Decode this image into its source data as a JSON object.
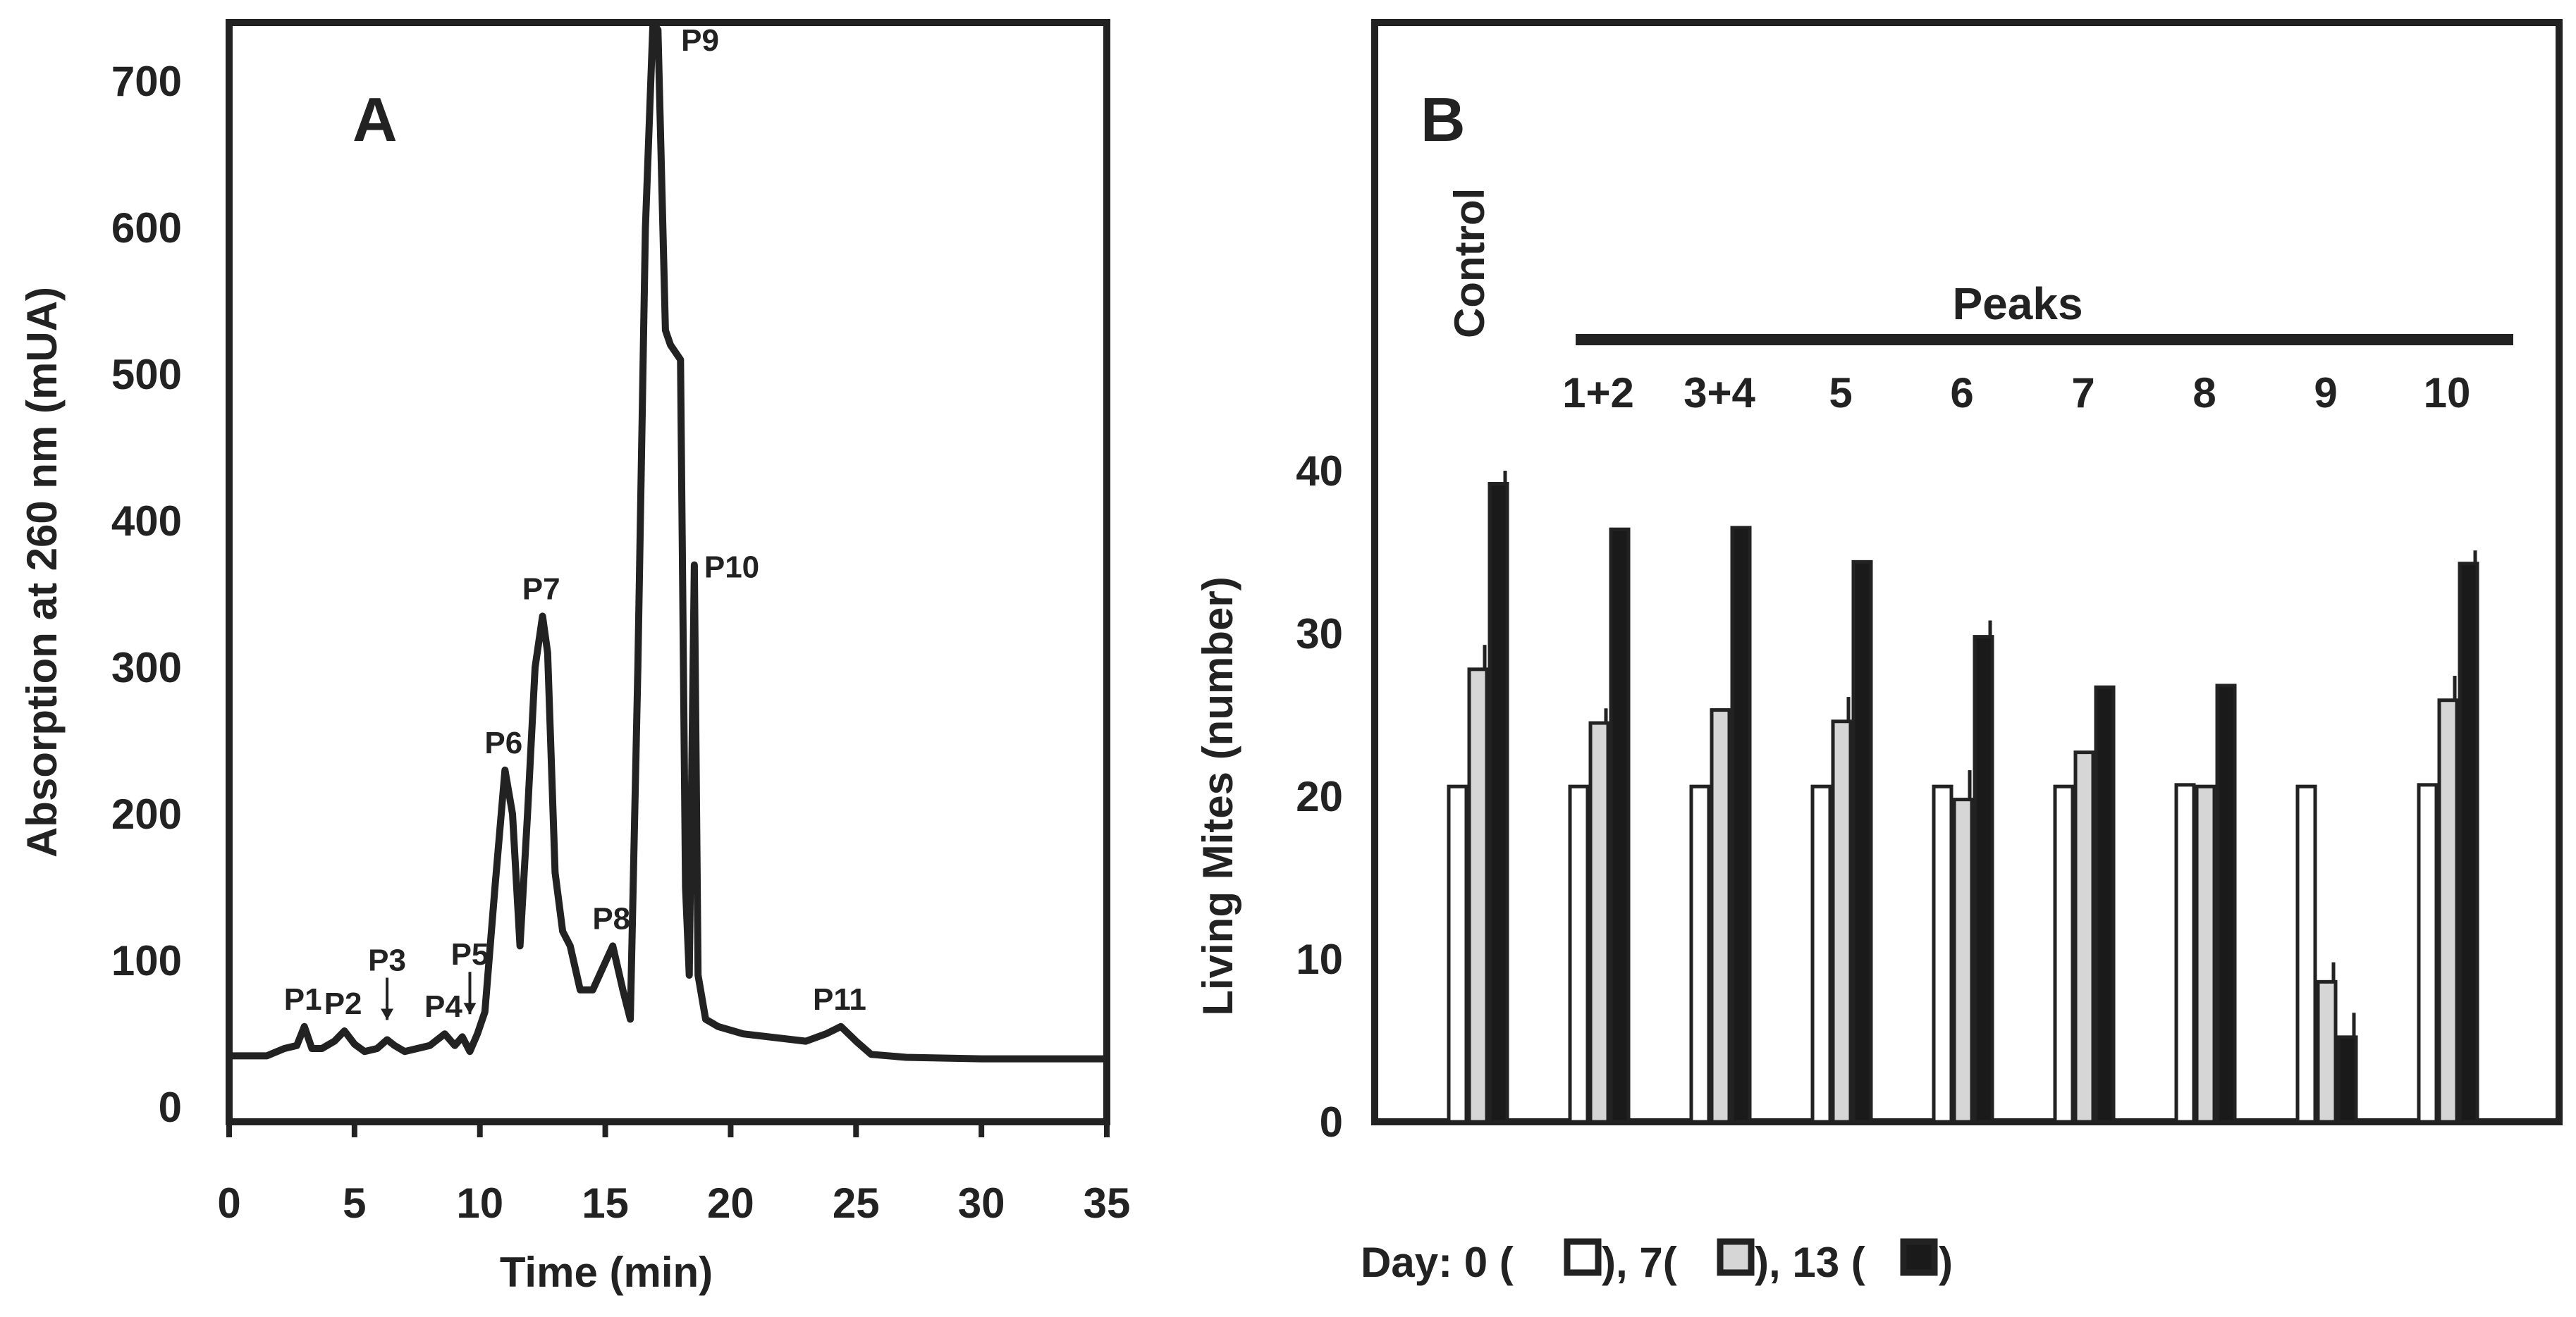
{
  "colors": {
    "ink": "#222222",
    "gray_bar": "#d6d6d6",
    "white_bar": "#ffffff",
    "black_bar": "#1a1a1a"
  },
  "chart_data": [
    {
      "type": "line",
      "panel_label": "A",
      "xlabel": "Time (min)",
      "ylabel": "Absorption at 260 nm (mUA)",
      "xlim": [
        0,
        35
      ],
      "ylim": [
        -10,
        740
      ],
      "x_ticks": [
        "0",
        "5",
        "10",
        "15",
        "20",
        "25",
        "30",
        "35"
      ],
      "y_ticks": [
        "0",
        "100",
        "200",
        "300",
        "400",
        "500",
        "600",
        "700"
      ],
      "trace": {
        "x": [
          0,
          1.5,
          2.2,
          2.7,
          3.0,
          3.3,
          3.7,
          4.2,
          4.6,
          5.0,
          5.4,
          5.9,
          6.3,
          6.6,
          7.0,
          7.5,
          8.0,
          8.6,
          9.0,
          9.3,
          9.6,
          9.9,
          10.2,
          10.6,
          11.0,
          11.3,
          11.6,
          11.9,
          12.2,
          12.5,
          12.7,
          13.0,
          13.3,
          13.6,
          14.0,
          14.5,
          14.9,
          15.3,
          15.7,
          16.0,
          16.3,
          16.6,
          16.9,
          17.1,
          17.4,
          17.6,
          18.0,
          18.2,
          18.35,
          18.55,
          18.7,
          19.0,
          19.5,
          20.5,
          23.0,
          23.8,
          24.4,
          25.0,
          25.6,
          27.0,
          30.0,
          35.0
        ],
        "y": [
          35,
          35,
          40,
          42,
          55,
          40,
          40,
          45,
          52,
          43,
          38,
          40,
          46,
          42,
          38,
          40,
          42,
          50,
          42,
          48,
          38,
          50,
          65,
          150,
          230,
          200,
          110,
          200,
          300,
          335,
          310,
          160,
          120,
          110,
          80,
          80,
          95,
          110,
          80,
          60,
          300,
          600,
          740,
          735,
          530,
          520,
          510,
          150,
          90,
          370,
          90,
          60,
          55,
          50,
          45,
          50,
          55,
          45,
          36,
          34,
          33,
          33
        ]
      },
      "annotations": [
        {
          "text": "P1",
          "x": 3.0,
          "y": 55
        },
        {
          "text": "P2",
          "x": 4.6,
          "y": 52
        },
        {
          "text": "P3",
          "x": 6.3,
          "y": 46,
          "arrow": true
        },
        {
          "text": "P4",
          "x": 8.6,
          "y": 50
        },
        {
          "text": "P5",
          "x": 9.6,
          "y": 50,
          "arrow": true
        },
        {
          "text": "P6",
          "x": 11.0,
          "y": 230
        },
        {
          "text": "P7",
          "x": 12.5,
          "y": 335
        },
        {
          "text": "P8",
          "x": 15.3,
          "y": 110
        },
        {
          "text": "P9",
          "x": 16.9,
          "y": 740
        },
        {
          "text": "P10",
          "x": 18.55,
          "y": 370
        },
        {
          "text": "P11",
          "x": 24.4,
          "y": 55
        }
      ]
    },
    {
      "type": "bar",
      "panel_label": "B",
      "ylabel": "Living Mites (number)",
      "ylim": [
        0,
        40
      ],
      "y_ticks": [
        "0",
        "10",
        "20",
        "30",
        "40"
      ],
      "control_label": "Control",
      "group_header": "Peaks",
      "categories": [
        "Control",
        "1+2",
        "3+4",
        "5",
        "6",
        "7",
        "8",
        "9",
        "10"
      ],
      "series": [
        {
          "name": "Day 0",
          "values": [
            20.6,
            20.6,
            20.6,
            20.6,
            20.6,
            20.6,
            20.7,
            20.6,
            20.7
          ]
        },
        {
          "name": "Day 7",
          "values": [
            27.8,
            24.5,
            25.3,
            24.6,
            19.8,
            22.7,
            20.6,
            8.6,
            25.9
          ],
          "errors": [
            1.5,
            0.9,
            0,
            1.5,
            1.8,
            0,
            0,
            1.2,
            1.5
          ]
        },
        {
          "name": "Day 13",
          "values": [
            39.2,
            36.4,
            36.5,
            34.4,
            29.8,
            26.7,
            26.8,
            5.2,
            34.3
          ],
          "errors": [
            0.8,
            0,
            0,
            0,
            1.0,
            0,
            0,
            1.5,
            0.8
          ]
        }
      ],
      "legend_text": {
        "prefix": "Day: 0 (",
        "part1": "), 7(",
        "part2": "), 13 (",
        "suffix": ")"
      }
    }
  ]
}
